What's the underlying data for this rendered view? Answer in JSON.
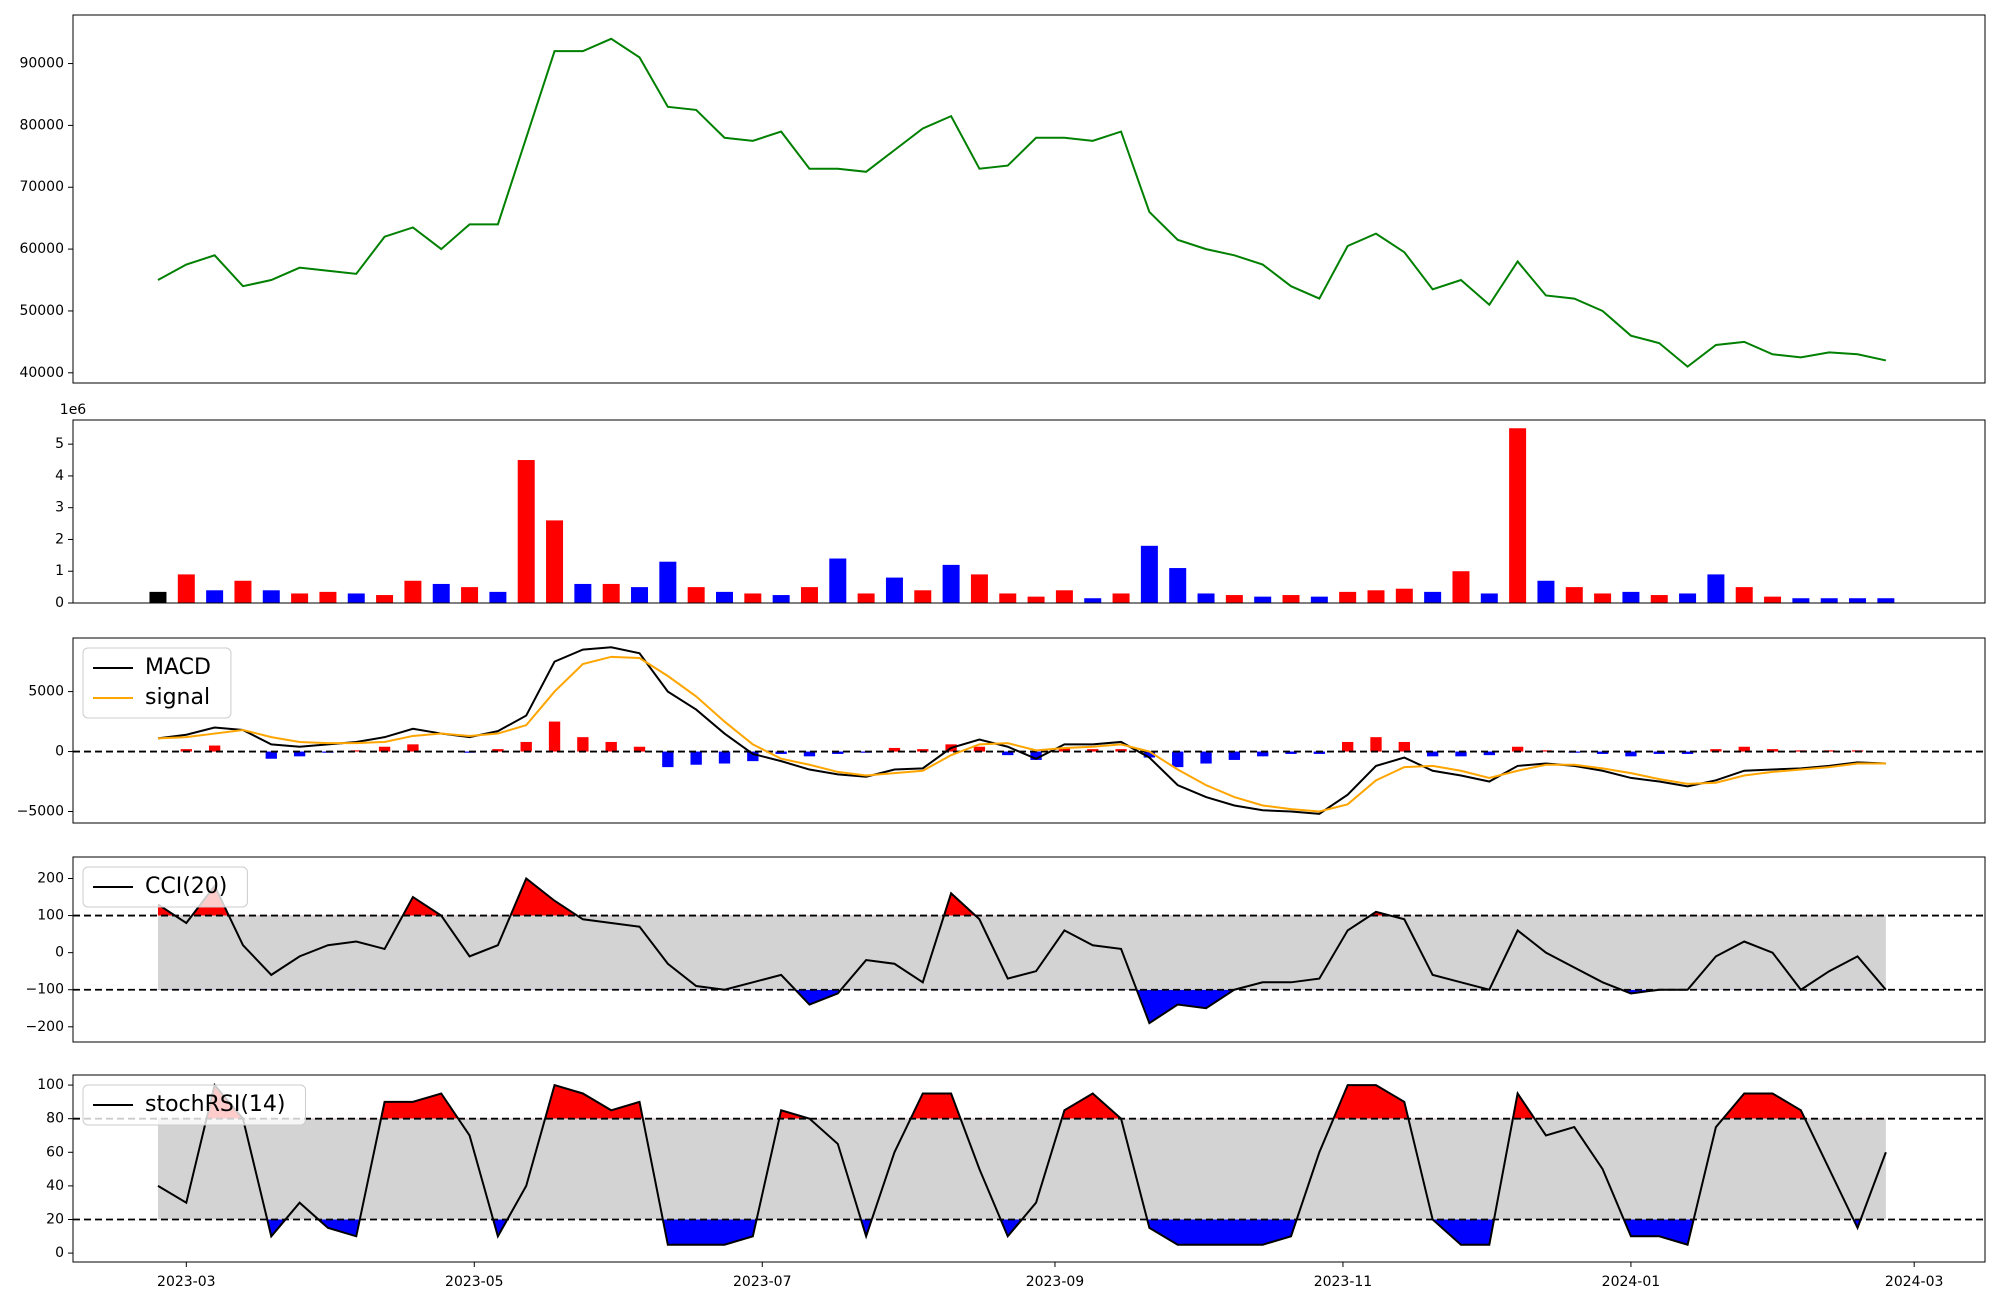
{
  "chart_data": [
    {
      "type": "line",
      "x": [
        -6,
        0,
        6,
        12,
        18,
        24,
        30,
        36,
        42,
        48,
        54,
        60,
        66,
        72,
        78,
        84,
        90,
        96,
        102,
        108,
        114,
        120,
        126,
        132,
        138,
        144,
        150,
        156,
        162,
        168,
        174,
        180,
        186,
        192,
        198,
        204,
        210,
        216,
        222,
        228,
        234,
        240,
        246,
        252,
        258,
        264,
        270,
        276,
        282,
        288,
        294,
        300,
        306,
        312,
        318,
        324,
        330,
        336,
        342,
        348,
        354,
        360
      ],
      "xlim": [
        -24,
        381
      ],
      "series": [
        {
          "color": "green",
          "values": [
            55000,
            57500,
            59000,
            54000,
            55000,
            57000,
            56500,
            56000,
            62000,
            63500,
            60000,
            64000,
            64000,
            78000,
            92000,
            92000,
            94000,
            91000,
            83000,
            82500,
            78000,
            77500,
            79000,
            73000,
            73000,
            72500,
            76000,
            79500,
            81500,
            73000,
            73500,
            78000,
            78000,
            77500,
            79000,
            66000,
            61500,
            60000,
            59000,
            57500,
            54000,
            52000,
            60500,
            62500,
            59500,
            53500,
            55000,
            51000,
            58000,
            52500,
            52000,
            50000,
            46000,
            44800,
            41000,
            44500,
            45000,
            43000,
            42500,
            43300,
            43000,
            42000
          ]
        }
      ],
      "ylim": [
        38350,
        97850
      ],
      "yticks": [
        40000,
        50000,
        60000,
        70000,
        80000,
        90000
      ]
    },
    {
      "type": "bar",
      "x": [
        -6,
        0,
        6,
        12,
        18,
        24,
        30,
        36,
        42,
        48,
        54,
        60,
        66,
        72,
        78,
        84,
        90,
        96,
        102,
        108,
        114,
        120,
        126,
        132,
        138,
        144,
        150,
        156,
        162,
        168,
        174,
        180,
        186,
        192,
        198,
        204,
        210,
        216,
        222,
        228,
        234,
        240,
        246,
        252,
        258,
        264,
        270,
        276,
        282,
        288,
        294,
        300,
        306,
        312,
        318,
        324,
        330,
        336,
        342,
        348,
        354,
        360
      ],
      "xlim": [
        -24,
        381
      ],
      "values": [
        0.35,
        0.9,
        0.4,
        0.7,
        0.4,
        0.3,
        0.35,
        0.3,
        0.25,
        0.7,
        0.6,
        0.5,
        0.35,
        4.5,
        2.6,
        0.6,
        0.6,
        0.5,
        1.3,
        0.5,
        0.35,
        0.3,
        0.25,
        0.5,
        1.4,
        0.3,
        0.8,
        0.4,
        1.2,
        0.9,
        0.3,
        0.2,
        0.4,
        0.15,
        0.3,
        1.8,
        1.1,
        0.3,
        0.25,
        0.2,
        0.25,
        0.2,
        0.35,
        0.4,
        0.45,
        0.35,
        1.0,
        0.3,
        5.5,
        0.7,
        0.5,
        0.3,
        0.35,
        0.25,
        0.3,
        0.9,
        0.5,
        0.2,
        0.15,
        0.15,
        0.15,
        0.15
      ],
      "bar_colors": [
        "black",
        "red",
        "blue",
        "red",
        "blue",
        "red",
        "red",
        "blue",
        "red",
        "red",
        "blue",
        "red",
        "blue",
        "red",
        "red",
        "blue",
        "red",
        "blue",
        "blue",
        "red",
        "blue",
        "red",
        "blue",
        "red",
        "blue",
        "red",
        "blue",
        "red",
        "blue",
        "red",
        "red",
        "red",
        "red",
        "blue",
        "red",
        "blue",
        "blue",
        "blue",
        "red",
        "blue",
        "red",
        "blue",
        "red",
        "red",
        "red",
        "blue",
        "red",
        "blue",
        "red",
        "blue",
        "red",
        "red",
        "blue",
        "red",
        "blue",
        "blue",
        "red",
        "red",
        "blue",
        "blue",
        "blue",
        "blue"
      ],
      "offset_label": "1e6",
      "ylim": [
        0,
        5.76
      ],
      "yticks": [
        0,
        1,
        2,
        3,
        4,
        5
      ]
    },
    {
      "type": "line",
      "x": [
        -6,
        0,
        6,
        12,
        18,
        24,
        30,
        36,
        42,
        48,
        54,
        60,
        66,
        72,
        78,
        84,
        90,
        96,
        102,
        108,
        114,
        120,
        126,
        132,
        138,
        144,
        150,
        156,
        162,
        168,
        174,
        180,
        186,
        192,
        198,
        204,
        210,
        216,
        222,
        228,
        234,
        240,
        246,
        252,
        258,
        264,
        270,
        276,
        282,
        288,
        294,
        300,
        306,
        312,
        318,
        324,
        330,
        336,
        342,
        348,
        354,
        360
      ],
      "xlim": [
        -24,
        381
      ],
      "series": [
        {
          "name": "MACD",
          "color": "black",
          "values": [
            1100,
            1400,
            2000,
            1800,
            600,
            400,
            600,
            800,
            1200,
            1900,
            1500,
            1200,
            1700,
            3000,
            7500,
            8500,
            8700,
            8200,
            5000,
            3500,
            1500,
            -200,
            -800,
            -1500,
            -1900,
            -2100,
            -1500,
            -1400,
            300,
            1000,
            400,
            -600,
            600,
            600,
            800,
            -500,
            -2800,
            -3800,
            -4500,
            -4900,
            -5000,
            -5200,
            -3600,
            -1200,
            -500,
            -1600,
            -2000,
            -2500,
            -1200,
            -1000,
            -1200,
            -1600,
            -2200,
            -2500,
            -2900,
            -2400,
            -1600,
            -1500,
            -1400,
            -1200,
            -900,
            -1000
          ]
        },
        {
          "name": "signal",
          "color": "orange",
          "values": [
            1100,
            1200,
            1500,
            1800,
            1200,
            800,
            700,
            700,
            800,
            1300,
            1500,
            1300,
            1500,
            2200,
            5000,
            7300,
            7900,
            7800,
            6300,
            4600,
            2500,
            600,
            -600,
            -1100,
            -1700,
            -2000,
            -1800,
            -1600,
            -300,
            600,
            700,
            100,
            300,
            400,
            600,
            0,
            -1500,
            -2800,
            -3800,
            -4500,
            -4800,
            -5000,
            -4400,
            -2400,
            -1300,
            -1200,
            -1600,
            -2200,
            -1600,
            -1100,
            -1100,
            -1400,
            -1800,
            -2300,
            -2700,
            -2600,
            -2000,
            -1700,
            -1500,
            -1300,
            -1000,
            -1000
          ]
        }
      ],
      "histogram": {
        "pos_color": "red",
        "neg_color": "blue",
        "values": [
          0,
          200,
          500,
          0,
          -600,
          -400,
          -100,
          100,
          400,
          600,
          0,
          -100,
          200,
          800,
          2500,
          1200,
          800,
          400,
          -1300,
          -1100,
          -1000,
          -800,
          -200,
          -400,
          -200,
          -100,
          300,
          200,
          600,
          400,
          -300,
          -700,
          300,
          200,
          200,
          -500,
          -1300,
          -1000,
          -700,
          -400,
          -200,
          -200,
          800,
          1200,
          800,
          -400,
          -400,
          -300,
          400,
          100,
          -100,
          -200,
          -400,
          -200,
          -200,
          200,
          400,
          200,
          100,
          100,
          100,
          0
        ]
      },
      "hlines": [
        0
      ],
      "legend": "upper left",
      "ylim": [
        -5960,
        9470
      ],
      "yticks": [
        {
          "value": -5000,
          "label": "−5000"
        },
        0,
        5000
      ]
    },
    {
      "type": "line",
      "x": [
        -6,
        0,
        6,
        12,
        18,
        24,
        30,
        36,
        42,
        48,
        54,
        60,
        66,
        72,
        78,
        84,
        90,
        96,
        102,
        108,
        114,
        120,
        126,
        132,
        138,
        144,
        150,
        156,
        162,
        168,
        174,
        180,
        186,
        192,
        198,
        204,
        210,
        216,
        222,
        228,
        234,
        240,
        246,
        252,
        258,
        264,
        270,
        276,
        282,
        288,
        294,
        300,
        306,
        312,
        318,
        324,
        330,
        336,
        342,
        348,
        354,
        360
      ],
      "xlim": [
        -24,
        381
      ],
      "series": [
        {
          "name": "CCI(20)",
          "color": "black",
          "values": [
            130,
            80,
            180,
            20,
            -60,
            -10,
            20,
            30,
            10,
            150,
            100,
            -10,
            20,
            200,
            140,
            90,
            80,
            70,
            -30,
            -90,
            -100,
            -80,
            -60,
            -140,
            -110,
            -20,
            -30,
            -80,
            160,
            90,
            -70,
            -50,
            60,
            20,
            10,
            -190,
            -140,
            -150,
            -100,
            -80,
            -80,
            -70,
            60,
            110,
            90,
            -60,
            -80,
            -100,
            60,
            0,
            -40,
            -80,
            -110,
            -100,
            -100,
            -10,
            30,
            0,
            -100,
            -50,
            -10,
            -100
          ]
        }
      ],
      "hlines": [
        -100,
        100
      ],
      "fill": {
        "above": "red",
        "below": "blue",
        "between": "lightgray"
      },
      "legend": "upper left",
      "ylim": [
        -241,
        258
      ],
      "yticks": [
        {
          "value": -200,
          "label": "−200"
        },
        {
          "value": -100,
          "label": "−100"
        },
        0,
        100,
        200
      ]
    },
    {
      "type": "line",
      "x": [
        -6,
        0,
        6,
        12,
        18,
        24,
        30,
        36,
        42,
        48,
        54,
        60,
        66,
        72,
        78,
        84,
        90,
        96,
        102,
        108,
        114,
        120,
        126,
        132,
        138,
        144,
        150,
        156,
        162,
        168,
        174,
        180,
        186,
        192,
        198,
        204,
        210,
        216,
        222,
        228,
        234,
        240,
        246,
        252,
        258,
        264,
        270,
        276,
        282,
        288,
        294,
        300,
        306,
        312,
        318,
        324,
        330,
        336,
        342,
        348,
        354,
        360
      ],
      "xlim": [
        -24,
        381
      ],
      "series": [
        {
          "name": "stochRSI(14)",
          "color": "black",
          "values": [
            40,
            30,
            100,
            80,
            10,
            30,
            15,
            10,
            90,
            90,
            95,
            70,
            10,
            40,
            100,
            95,
            85,
            90,
            5,
            5,
            5,
            10,
            85,
            80,
            65,
            10,
            60,
            95,
            95,
            50,
            10,
            30,
            85,
            95,
            80,
            15,
            5,
            5,
            5,
            5,
            10,
            60,
            100,
            100,
            90,
            20,
            5,
            5,
            95,
            70,
            75,
            50,
            10,
            10,
            5,
            75,
            95,
            95,
            85,
            50,
            15,
            60
          ]
        }
      ],
      "hlines": [
        20,
        80
      ],
      "fill": {
        "above": "red",
        "below": "blue",
        "between": "lightgray"
      },
      "legend": "upper left",
      "ylim": [
        -5.3,
        106
      ],
      "yticks": [
        0,
        20,
        40,
        60,
        80,
        100
      ],
      "xticks": [
        {
          "value": 0,
          "label": "2023-03"
        },
        {
          "value": 61,
          "label": "2023-05"
        },
        {
          "value": 122,
          "label": "2023-07"
        },
        {
          "value": 184,
          "label": "2023-09"
        },
        {
          "value": 245,
          "label": "2023-11"
        },
        {
          "value": 306,
          "label": "2024-01"
        },
        {
          "value": 366,
          "label": "2024-03"
        }
      ]
    }
  ]
}
